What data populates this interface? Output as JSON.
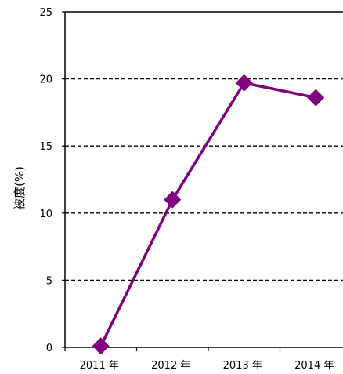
{
  "chart_data": {
    "type": "line",
    "title": "",
    "xlabel": "",
    "ylabel": "被度(%)",
    "categories": [
      "2011 年",
      "2012 年",
      "2013 年",
      "2014 年"
    ],
    "series": [
      {
        "values": [
          0.1,
          11.0,
          19.7,
          18.6
        ],
        "color": "#800080",
        "marker": "diamond"
      }
    ],
    "ylim": [
      0,
      25
    ],
    "yticks": [
      0,
      5,
      10,
      15,
      20,
      25
    ],
    "grid": {
      "y": true,
      "style": "dashed",
      "lines_at": [
        5,
        10,
        15,
        20
      ]
    },
    "legend": "none"
  }
}
